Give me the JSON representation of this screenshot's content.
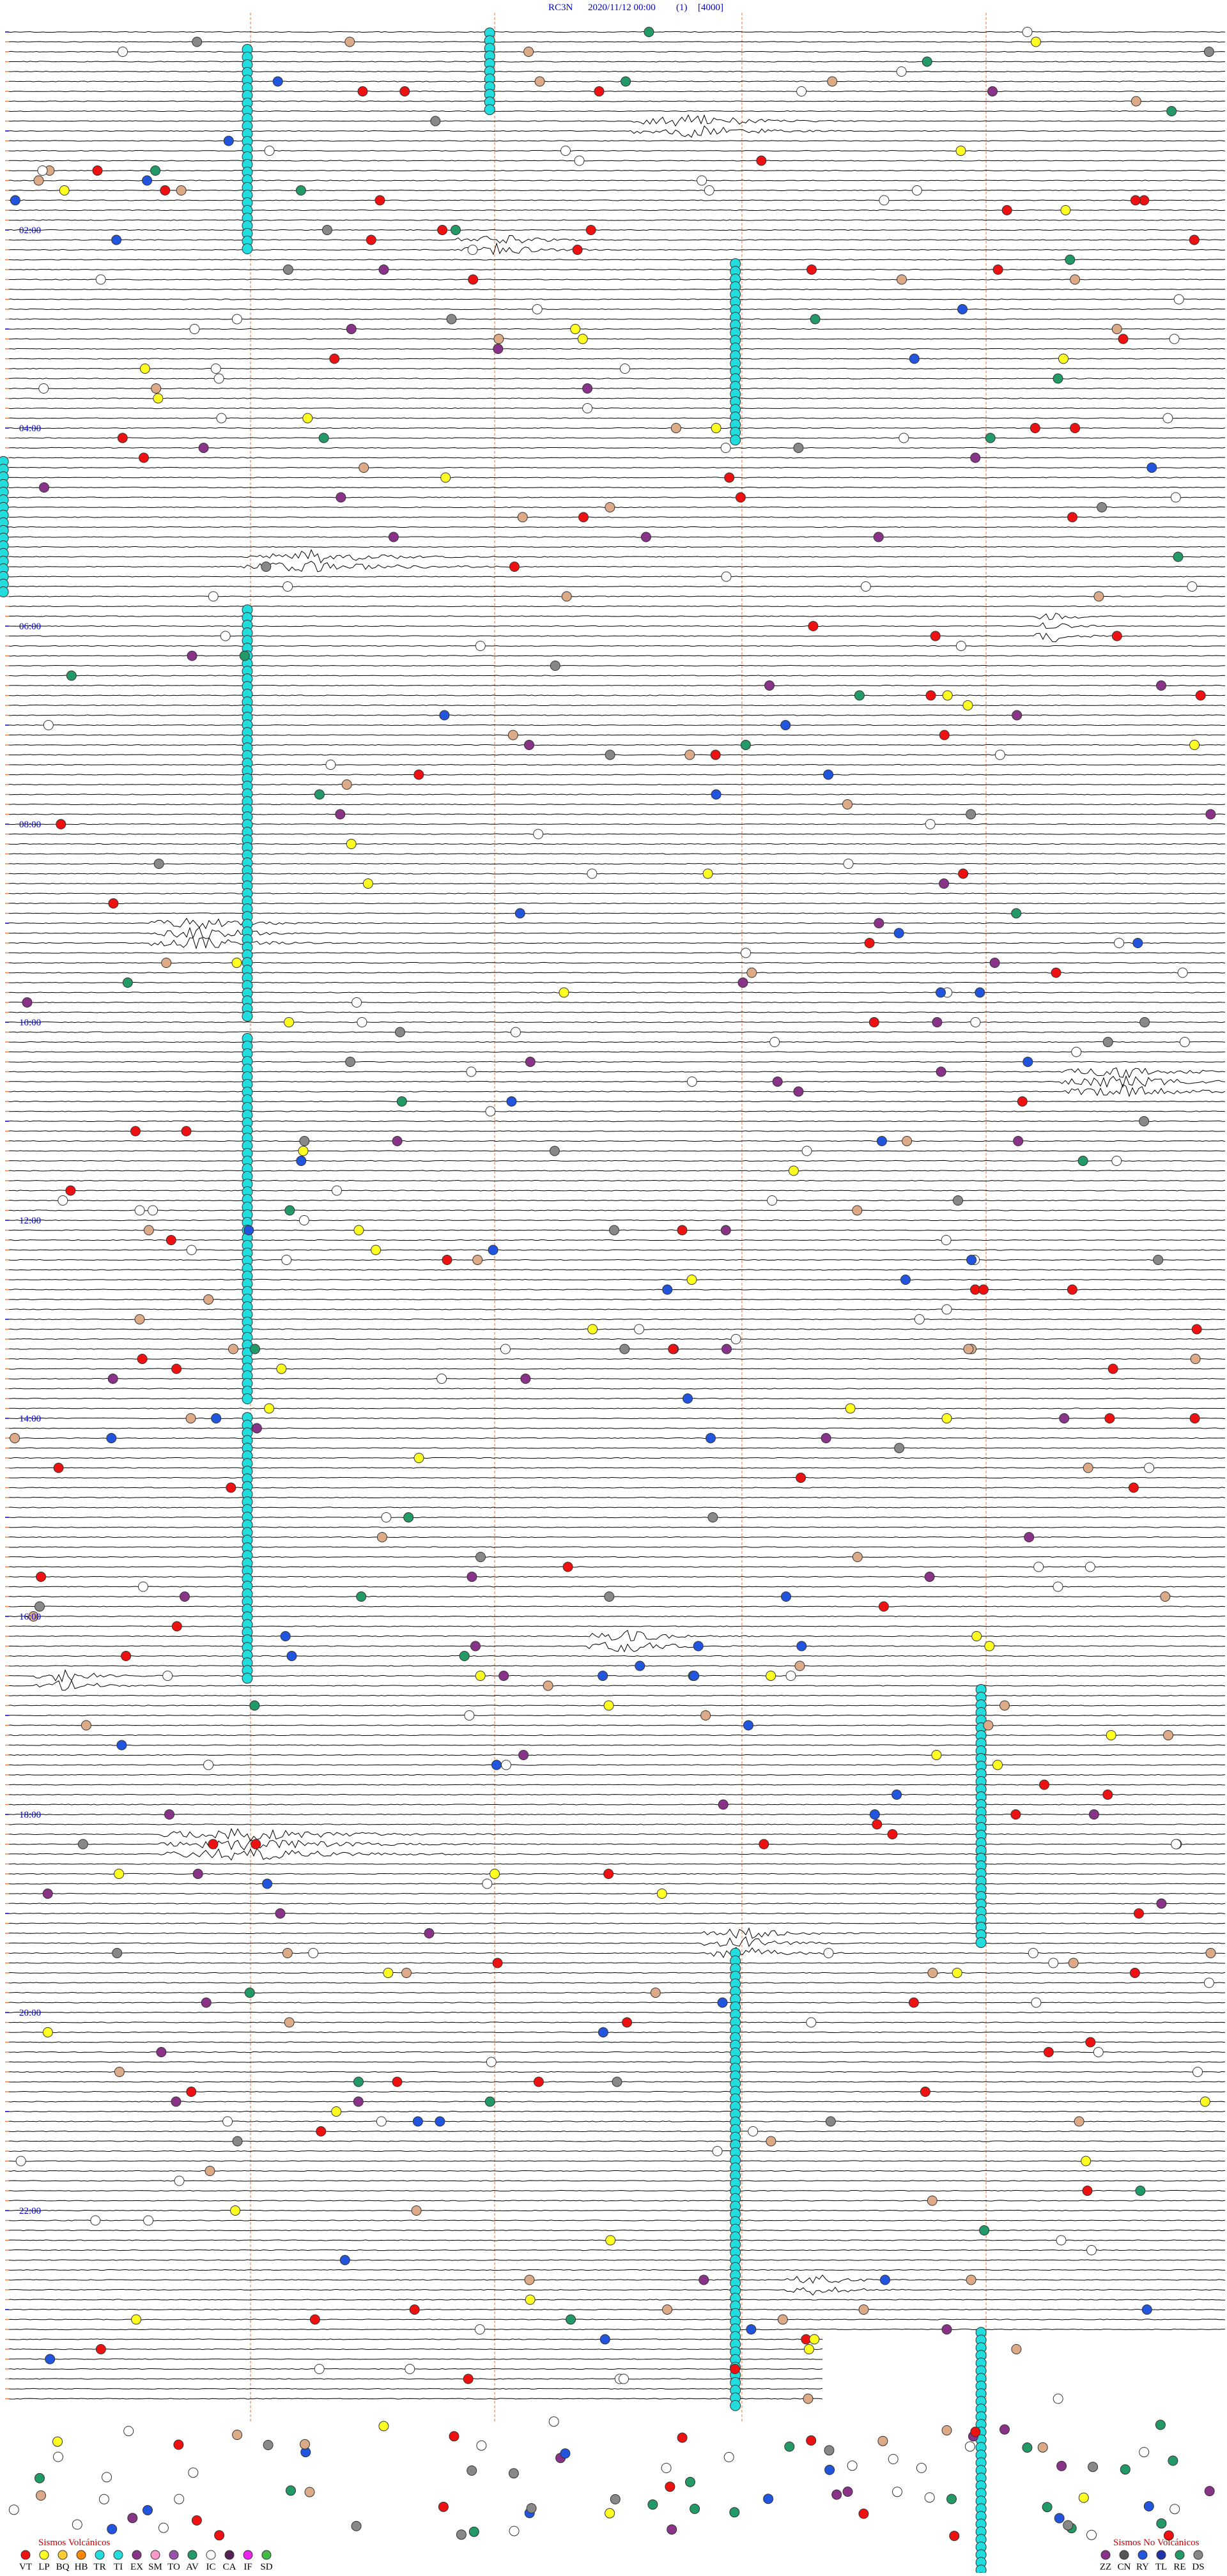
{
  "header": {
    "station": "RC3N",
    "datetime": "2020/11/12 00:00",
    "channel": "(1)",
    "scale": "[4000]"
  },
  "time_labels": [
    "02:00",
    "04:00",
    "06:00",
    "08:00",
    "10:00",
    "12:00",
    "14:00",
    "16:00",
    "18:00",
    "20:00",
    "22:00"
  ],
  "legend": {
    "volcanic": {
      "title": "Sismos Volcánicos",
      "codes": [
        "VT",
        "LP",
        "BQ",
        "HB",
        "TR",
        "TI",
        "EX",
        "SM",
        "TO",
        "AV",
        "IC",
        "CA",
        "IF",
        "SD"
      ]
    },
    "non_volcanic": {
      "title": "Sismos No Volcánicos",
      "codes": [
        "ZZ",
        "CN",
        "RY",
        "TL",
        "RE",
        "DS"
      ]
    }
  }
}
